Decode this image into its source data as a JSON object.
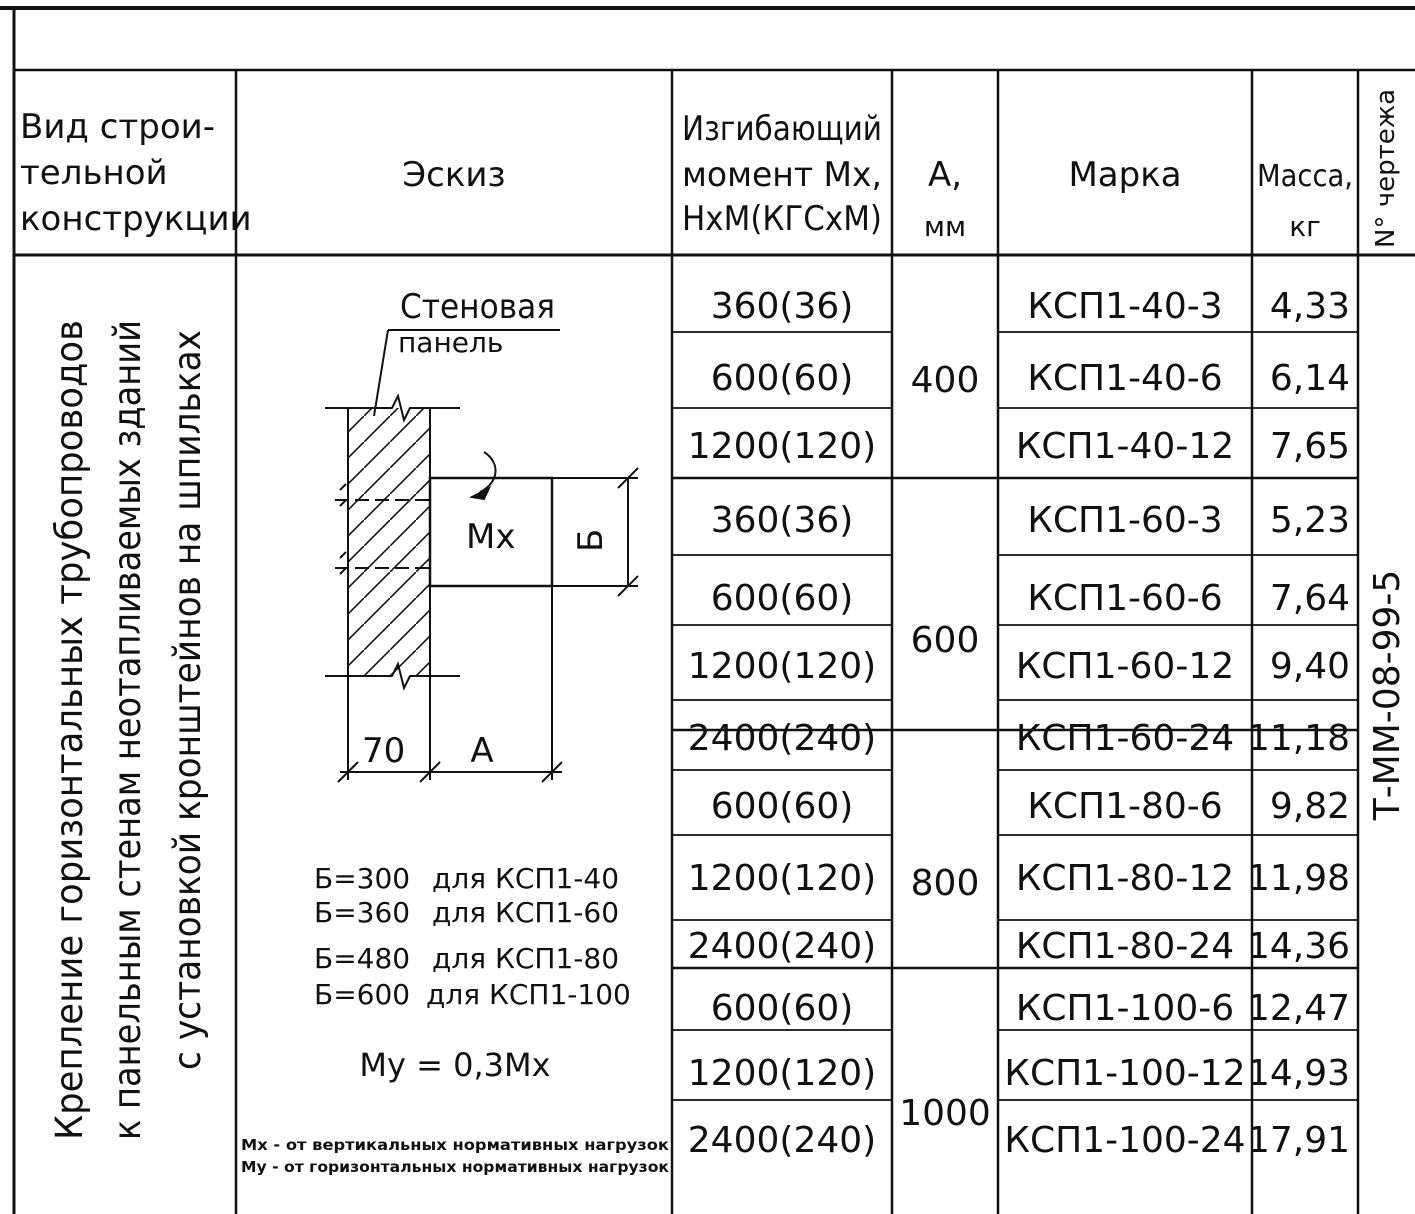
{
  "headers": {
    "type_line1": "Вид строи-",
    "type_line2": "тельной",
    "type_line3": "конструкции",
    "sketch": "Эскиз",
    "moment_line1": "Изгибающий",
    "moment_line2": "момент Мх,",
    "moment_line3": "НхМ(КГСхМ)",
    "a_line1": "А,",
    "a_line2": "мм",
    "mark": "Марка",
    "mass_line1": "Масса,",
    "mass_line2": "кг",
    "drawing_no": "N° чертежа"
  },
  "construction_type": {
    "line1": "Крепление горизонтальных трубопроводов",
    "line2": "к панельным стенам неотапливаемых зданий",
    "line3": "с установкой кронштейнов на шпильках"
  },
  "sketch": {
    "panel_label_1": "Стеновая",
    "panel_label_2": "панель",
    "moment_label": "Мх",
    "b_label": "Б",
    "dim_70": "70",
    "dim_a": "А",
    "b_values": [
      {
        "size": "Б=300",
        "text": "для КСП1-40"
      },
      {
        "size": "Б=360",
        "text": "для КСП1-60"
      },
      {
        "size": "Б=480",
        "text": "для КСП1-80"
      },
      {
        "size": "Б=600",
        "text": "для КСП1-100"
      }
    ],
    "formula": "Му = 0,3Мх",
    "note_1": "Мх - от вертикальных нормативных нагрузок",
    "note_2": "Му - от горизонтальных нормативных нагрузок"
  },
  "a_values": [
    "400",
    "600",
    "800",
    "1000"
  ],
  "rows": [
    {
      "moment": "360(36)",
      "mark": "КСП1-40-3",
      "mass": "4,33"
    },
    {
      "moment": "600(60)",
      "mark": "КСП1-40-6",
      "mass": "6,14"
    },
    {
      "moment": "1200(120)",
      "mark": "КСП1-40-12",
      "mass": "7,65"
    },
    {
      "moment": "360(36)",
      "mark": "КСП1-60-3",
      "mass": "5,23"
    },
    {
      "moment": "600(60)",
      "mark": "КСП1-60-6",
      "mass": "7,64"
    },
    {
      "moment": "1200(120)",
      "mark": "КСП1-60-12",
      "mass": "9,40"
    },
    {
      "moment": "2400(240)",
      "mark": "КСП1-60-24",
      "mass": "11,18"
    },
    {
      "moment": "600(60)",
      "mark": "КСП1-80-6",
      "mass": "9,82"
    },
    {
      "moment": "1200(120)",
      "mark": "КСП1-80-12",
      "mass": "11,98"
    },
    {
      "moment": "2400(240)",
      "mark": "КСП1-80-24",
      "mass": "14,36"
    },
    {
      "moment": "600(60)",
      "mark": "КСП1-100-6",
      "mass": "12,47"
    },
    {
      "moment": "1200(120)",
      "mark": "КСП1-100-12",
      "mass": "14,93"
    },
    {
      "moment": "2400(240)",
      "mark": "КСП1-100-24",
      "mass": "17,91"
    }
  ],
  "drawing_number": "Т-ММ-08-99-5"
}
